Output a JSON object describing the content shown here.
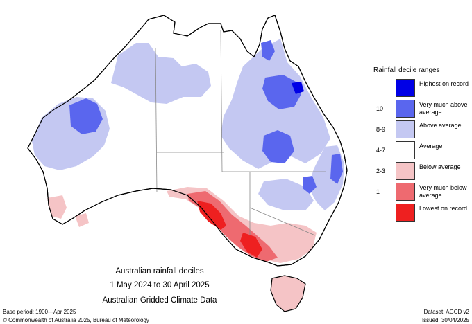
{
  "legend": {
    "title": "Rainfall decile ranges",
    "items": [
      {
        "label": "Highest on record",
        "decile": "",
        "color": "#0000e6"
      },
      {
        "label": "Very much above average",
        "decile": "10",
        "color": "#5a66ee"
      },
      {
        "label": "Above average",
        "decile": "8-9",
        "color": "#c4c8f2"
      },
      {
        "label": "Average",
        "decile": "4-7",
        "color": "#ffffff"
      },
      {
        "label": "Below average",
        "decile": "2-3",
        "color": "#f5c4c6"
      },
      {
        "label": "Very much below average",
        "decile": "1",
        "color": "#ee6a70"
      },
      {
        "label": "Lowest on record",
        "decile": "",
        "color": "#ee2020"
      }
    ]
  },
  "caption": {
    "line1": "Australian rainfall deciles",
    "line2": "1 May 2024 to 30 April 2025",
    "line3": "Australian Gridded Climate Data"
  },
  "footer": {
    "base_period": "Base period: 1900—Apr 2025",
    "dataset": "Dataset: AGCD v2",
    "copyright": "© Commonwealth of Australia 2025, Bureau of Meteorology",
    "issued": "Issued: 30/04/2025"
  }
}
